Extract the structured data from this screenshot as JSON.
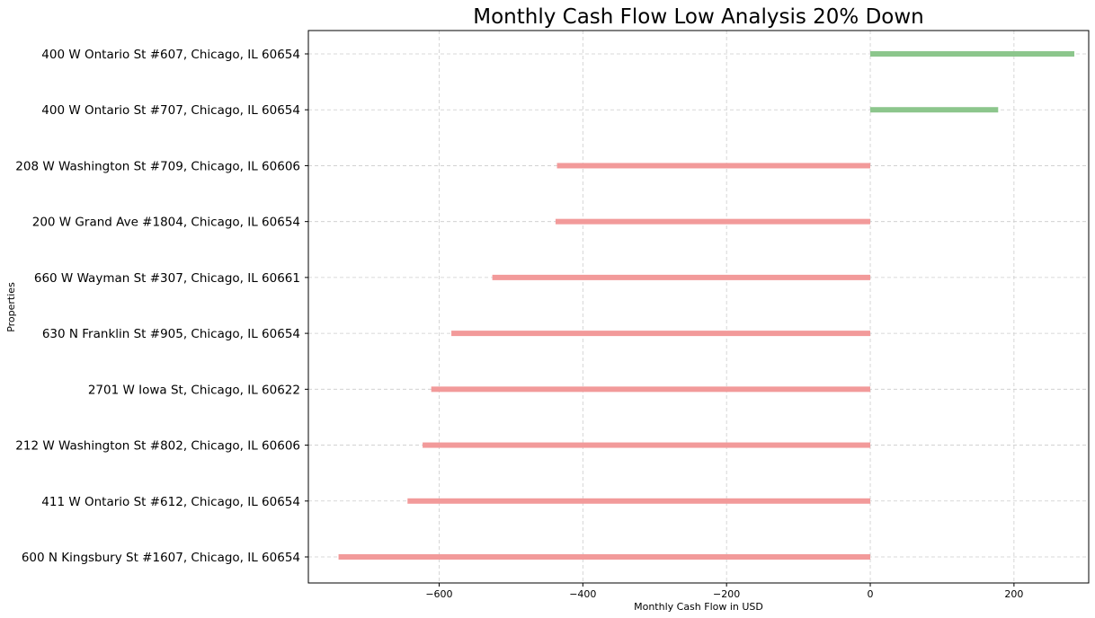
{
  "chart_data": {
    "type": "bar",
    "orientation": "horizontal",
    "title": "Monthly Cash Flow Low Analysis 20% Down",
    "xlabel": "Monthly Cash Flow in USD",
    "ylabel": "Properties",
    "xlim": [
      -782,
      304
    ],
    "xticks": [
      -600,
      -400,
      -200,
      0,
      200
    ],
    "xtick_labels": [
      "−600",
      "−400",
      "−200",
      "0",
      "200"
    ],
    "grid": true,
    "positive_color": "#8cc68c",
    "negative_color": "#f29a9a",
    "categories": [
      "400 W Ontario St #607, Chicago, IL 60654",
      "400 W Ontario St #707, Chicago, IL 60654",
      "208 W Washington St #709, Chicago, IL 60606",
      "200 W Grand Ave #1804, Chicago, IL 60654",
      "660 W Wayman St #307, Chicago, IL 60661",
      "630 N Franklin St #905, Chicago, IL 60654",
      "2701 W Iowa St, Chicago, IL 60622",
      "212 W Washington St #802, Chicago, IL 60606",
      "411 W Ontario St #612, Chicago, IL 60654",
      "600 N Kingsbury St #1607, Chicago, IL 60654"
    ],
    "values": [
      284,
      178,
      -436,
      -438,
      -526,
      -583,
      -611,
      -623,
      -644,
      -740
    ]
  }
}
